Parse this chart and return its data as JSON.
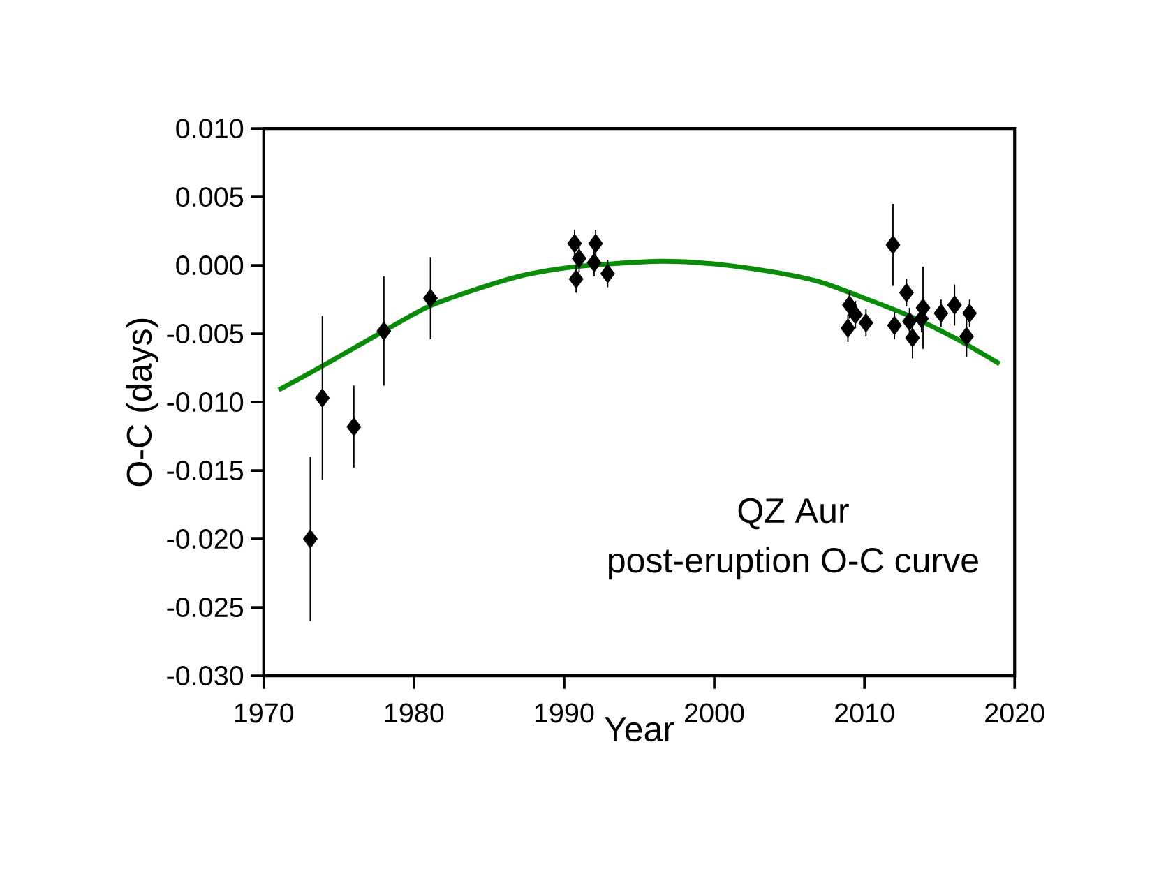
{
  "chart_data": {
    "type": "scatter",
    "xlabel": "Year",
    "ylabel": "O-C (days)",
    "annotations": [
      "QZ Aur",
      "post-eruption O-C curve"
    ],
    "xlim": [
      1970,
      2020
    ],
    "xticks": [
      1970,
      1980,
      1990,
      2000,
      2010,
      2020
    ],
    "ylim": [
      -0.03,
      0.01
    ],
    "yticks": [
      {
        "value": -0.03,
        "label": "-0.030"
      },
      {
        "value": -0.025,
        "label": "-0.025"
      },
      {
        "value": -0.02,
        "label": "-0.020"
      },
      {
        "value": -0.015,
        "label": "-0.015"
      },
      {
        "value": -0.01,
        "label": "-0.010"
      },
      {
        "value": -0.005,
        "label": "-0.005"
      },
      {
        "value": 0,
        "label": "0.000"
      },
      {
        "value": 0.005,
        "label": "0.005"
      },
      {
        "value": 0.01,
        "label": "0.010"
      }
    ],
    "grid": false,
    "marker": "diamond",
    "series": [
      {
        "color": "#000000",
        "x": [
          1973.1,
          1973.9,
          1976.0,
          1978.0,
          1981.1,
          1990.7,
          1992.1,
          1991.0,
          1990.8,
          1992.0,
          1992.9,
          2011.9,
          2012.8,
          2009.0,
          2008.9,
          2010.1,
          2009.4,
          2012.0,
          2013.2,
          2013.0,
          2013.9,
          2013.8,
          2015.1,
          2016.0,
          2017.0,
          2016.8
        ],
        "values": [
          -0.02,
          -0.0097,
          -0.0118,
          -0.0048,
          -0.0024,
          0.0016,
          0.0016,
          0.0005,
          -0.001,
          0.0002,
          -0.0006,
          0.0015,
          -0.002,
          -0.0029,
          -0.0046,
          -0.0042,
          -0.0036,
          -0.0044,
          -0.0053,
          -0.0041,
          -0.0031,
          -0.0039,
          -0.0035,
          -0.0029,
          -0.0035,
          -0.0052
        ],
        "errors": [
          0.006,
          0.006,
          0.003,
          0.004,
          0.003,
          0.001,
          0.001,
          0.001,
          0.001,
          0.001,
          0.001,
          0.003,
          0.001,
          0.001,
          0.001,
          0.001,
          0.001,
          0.001,
          0.0015,
          0.001,
          0.003,
          0.001,
          0.001,
          0.0015,
          0.001,
          0.0015
        ]
      },
      {
        "type": "line",
        "color": "#0a8c0a",
        "marker": "none",
        "line_style": "solid",
        "x": [
          1971,
          1974,
          1978,
          1981,
          1984,
          1987,
          1990,
          1993,
          1996.5,
          2000,
          2004,
          2007,
          2010,
          2013,
          2016,
          2019
        ],
        "values": [
          -0.0091,
          -0.0073,
          -0.0048,
          -0.003,
          -0.0018,
          -0.0008,
          -0.0002,
          0.0001,
          0.0003,
          0.0001,
          -0.0005,
          -0.0012,
          -0.0024,
          -0.0037,
          -0.0053,
          -0.0072
        ]
      }
    ]
  }
}
